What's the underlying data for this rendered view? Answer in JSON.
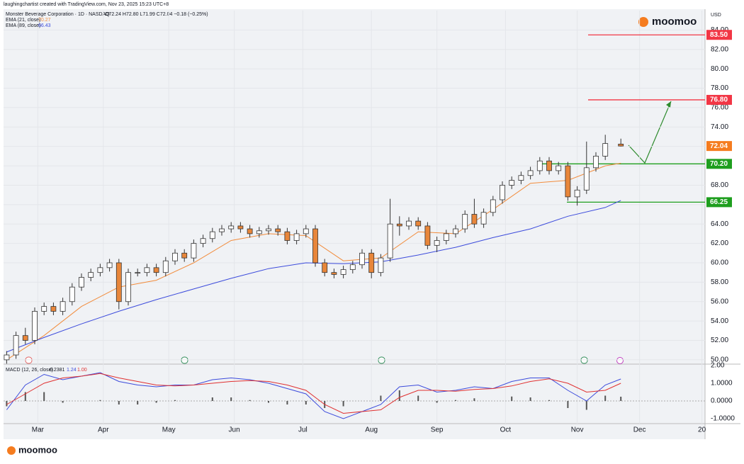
{
  "credit": "laughingchartist created with TradingView.com, Nov 23, 2025 15:23 UTC+8",
  "brand": "moomoo",
  "currency": "USD",
  "chart_data": [
    {
      "type": "candlestick",
      "title": "Monster Beverage Corporation · 1D · NASDAQ",
      "subtitle": "O72.24 H72.80 L71.99 C72.04 −0.18 (−0.25%)",
      "up_color": "#ffffff",
      "down_color": "#e8863a",
      "xlim": [
        -1,
        224
      ],
      "xticks": [
        {
          "value": 10,
          "label": "Mar"
        },
        {
          "value": 31,
          "label": "Apr"
        },
        {
          "value": 52,
          "label": "May"
        },
        {
          "value": 73,
          "label": "Jun"
        },
        {
          "value": 95,
          "label": "Jul"
        },
        {
          "value": 117,
          "label": "Aug"
        },
        {
          "value": 138,
          "label": "Sep"
        },
        {
          "value": 160,
          "label": "Oct"
        },
        {
          "value": 183,
          "label": "Nov"
        },
        {
          "value": 203,
          "label": "Dec"
        },
        {
          "value": 223,
          "label": "20"
        }
      ],
      "ylim": [
        49.7,
        86.0
      ],
      "yticks": [
        {
          "value": 50,
          "label": "50.00"
        },
        {
          "value": 52,
          "label": "52.00"
        },
        {
          "value": 54,
          "label": "54.00"
        },
        {
          "value": 56,
          "label": "56.00"
        },
        {
          "value": 58,
          "label": "58.00"
        },
        {
          "value": 60,
          "label": "60.00"
        },
        {
          "value": 62,
          "label": "62.00"
        },
        {
          "value": 64,
          "label": "64.00"
        },
        {
          "value": 66,
          "label": "66.00"
        },
        {
          "value": 68,
          "label": "68.00"
        },
        {
          "value": 70,
          "label": "70.00"
        },
        {
          "value": 72,
          "label": "72.00"
        },
        {
          "value": 74,
          "label": "74.00"
        },
        {
          "value": 76,
          "label": "76.00"
        },
        {
          "value": 78,
          "label": "78.00"
        },
        {
          "value": 80,
          "label": "80.00"
        },
        {
          "value": 82,
          "label": "82.00"
        },
        {
          "value": 84,
          "label": "84.00"
        }
      ],
      "x": [
        0,
        3,
        6,
        9,
        12,
        15,
        18,
        21,
        24,
        27,
        30,
        33,
        36,
        39,
        42,
        45,
        48,
        51,
        54,
        57,
        60,
        63,
        66,
        69,
        72,
        75,
        78,
        81,
        84,
        87,
        90,
        93,
        96,
        99,
        102,
        105,
        108,
        111,
        114,
        117,
        120,
        123,
        126,
        129,
        132,
        135,
        138,
        141,
        144,
        147,
        150,
        153,
        156,
        159,
        162,
        165,
        168,
        171,
        174,
        177,
        180,
        183,
        186,
        189,
        192,
        197
      ],
      "open": [
        50,
        50.5,
        52.5,
        52,
        55,
        55.5,
        55,
        56,
        57.5,
        58.5,
        59,
        59.5,
        60,
        56,
        59,
        59,
        59.5,
        59,
        60.2,
        61,
        60.5,
        62,
        62.5,
        63.2,
        63.5,
        63.8,
        63.5,
        63,
        63.3,
        63.5,
        63.2,
        62.3,
        63,
        63.5,
        60,
        59,
        58.8,
        59.3,
        59.8,
        61,
        59,
        60.5,
        64,
        63.8,
        64.3,
        63.8,
        61.8,
        62.3,
        63,
        63.5,
        65,
        64,
        65.2,
        66.5,
        68,
        68.5,
        69,
        69.5,
        70.5,
        69.5,
        70,
        66.8,
        67.5,
        69.8,
        71,
        72.24
      ],
      "high": [
        50.9,
        52.9,
        53.3,
        55.4,
        55.9,
        55.9,
        56.4,
        57.9,
        58.9,
        59.4,
        59.9,
        60.4,
        60.4,
        59.4,
        59.4,
        59.9,
        59.9,
        60.6,
        61.4,
        61.4,
        62.4,
        62.9,
        63.6,
        63.9,
        64.2,
        64.2,
        63.9,
        63.7,
        63.9,
        63.9,
        63.6,
        63.4,
        63.9,
        63.9,
        60.4,
        59.4,
        59.7,
        60.2,
        61.4,
        61.4,
        60.9,
        66.6,
        64.8,
        64.7,
        64.7,
        64.2,
        62.7,
        63.4,
        63.9,
        65.4,
        66.6,
        65.6,
        66.9,
        68.4,
        68.9,
        69.4,
        69.9,
        70.9,
        70.9,
        70.4,
        70.4,
        67.9,
        72.5,
        71.4,
        73.2,
        72.8
      ],
      "low": [
        49.6,
        50.1,
        51.6,
        51.6,
        54.6,
        54.6,
        54.6,
        55.6,
        57.1,
        58.1,
        58.6,
        59.1,
        55.2,
        55.6,
        58.6,
        58.6,
        58.6,
        58.6,
        59.8,
        60.1,
        60.1,
        61.6,
        62.1,
        62.8,
        63.1,
        63.1,
        62.6,
        62.6,
        62.9,
        62.8,
        61.9,
        61.9,
        62.6,
        59.6,
        58.6,
        58.4,
        58.4,
        58.9,
        59.4,
        58.4,
        58.6,
        60.1,
        62.8,
        63.4,
        63.4,
        61.4,
        61.1,
        61.9,
        62.6,
        63.1,
        63.6,
        63.6,
        64.8,
        66.1,
        67.6,
        68.1,
        68.6,
        69.1,
        69.1,
        69.1,
        66.4,
        65.9,
        67.1,
        69.4,
        70.6,
        71.99
      ],
      "close": [
        50.5,
        52.5,
        52,
        55,
        55.5,
        55,
        56,
        57.5,
        58.5,
        59,
        59.5,
        60,
        56,
        59,
        59,
        59.5,
        59,
        60.2,
        61,
        60.5,
        62,
        62.5,
        63.2,
        63.5,
        63.8,
        63.5,
        63,
        63.3,
        63.5,
        63.2,
        62.3,
        63,
        63.5,
        60,
        59,
        58.8,
        59.3,
        59.8,
        61,
        59,
        60.5,
        64,
        63.8,
        64.3,
        63.8,
        61.8,
        62.3,
        63,
        63.5,
        65,
        64,
        65.2,
        66.5,
        68,
        68.5,
        69,
        69.5,
        70.5,
        69.5,
        70,
        66.8,
        67.5,
        69.8,
        71,
        72.3,
        72.04
      ],
      "series": [
        {
          "name": "EMA (21, close)",
          "color": "#f28c3c",
          "last": 70.27,
          "x": [
            0,
            12,
            24,
            36,
            48,
            60,
            72,
            84,
            96,
            108,
            120,
            132,
            144,
            156,
            168,
            180,
            192,
            197
          ],
          "values": [
            50,
            52.5,
            55.5,
            57.5,
            58.2,
            60,
            62.3,
            63,
            62.8,
            60.2,
            60.5,
            63.2,
            63,
            65.5,
            68.2,
            68.5,
            70,
            70.27
          ]
        },
        {
          "name": "EMA (89, close)",
          "color": "#3c4bdc",
          "last": 66.43,
          "x": [
            0,
            12,
            24,
            36,
            48,
            60,
            72,
            84,
            96,
            108,
            120,
            132,
            144,
            156,
            168,
            180,
            192,
            197
          ],
          "values": [
            50.8,
            52.3,
            53.7,
            55,
            56.2,
            57.3,
            58.4,
            59.4,
            60,
            59.9,
            60.1,
            60.8,
            61.6,
            62.6,
            63.5,
            64.8,
            65.7,
            66.43
          ]
        }
      ],
      "levels": [
        {
          "value": 83.5,
          "label": "83.50",
          "color": "#f23645",
          "line": true
        },
        {
          "value": 76.8,
          "label": "76.80",
          "color": "#f23645",
          "line": true
        },
        {
          "value": 72.04,
          "label": "72.04",
          "color": "#f57c1f",
          "line": false
        },
        {
          "value": 70.2,
          "label": "70.20",
          "color": "#1e9e1e",
          "line": true
        },
        {
          "value": 66.25,
          "label": "66.25",
          "color": "#1e9e1e",
          "line": true
        }
      ]
    },
    {
      "type": "macd",
      "title": "MACD (12, 26, close)",
      "legend_values": [
        0.2381,
        1.24,
        1
      ],
      "legend_value_labels": [
        "0.2381",
        "1.24",
        "1.00"
      ],
      "legend_colors": [
        "#131722",
        "#3c4bdc",
        "#e03030"
      ],
      "ylim": [
        -1.28,
        2
      ],
      "yticks": [
        {
          "value": 2,
          "label": "2.00"
        },
        {
          "value": 1,
          "label": "1.0000"
        },
        {
          "value": 0,
          "label": "0.0000"
        },
        {
          "value": -1,
          "label": "-1.0000"
        }
      ],
      "x": [
        0,
        6,
        12,
        18,
        24,
        30,
        36,
        42,
        48,
        54,
        60,
        66,
        72,
        78,
        84,
        90,
        96,
        102,
        108,
        114,
        120,
        126,
        132,
        138,
        144,
        150,
        156,
        162,
        168,
        174,
        180,
        186,
        192,
        197
      ],
      "histogram": [
        -0.3,
        0.5,
        0.5,
        -0.1,
        0,
        0.05,
        -0.2,
        -0.2,
        -0.1,
        0.05,
        0,
        0.2,
        0.2,
        0.05,
        -0.1,
        -0.2,
        -0.2,
        -0.4,
        -0.3,
        0,
        0.3,
        0.6,
        0.3,
        -0.1,
        0.05,
        0.15,
        0,
        0.25,
        0.2,
        0.05,
        -0.4,
        -0.5,
        0.3,
        0.24
      ],
      "histogram_color": "#555",
      "series": [
        {
          "color": "#3c4bdc",
          "values": [
            -0.5,
            0.9,
            1.5,
            1.2,
            1.4,
            1.6,
            1.1,
            0.9,
            0.8,
            0.9,
            0.9,
            1.2,
            1.3,
            1.2,
            1,
            0.7,
            0.4,
            -0.6,
            -1,
            -0.6,
            -0.2,
            0.8,
            0.9,
            0.5,
            0.6,
            0.8,
            0.7,
            1.1,
            1.3,
            1.3,
            0.6,
            0,
            0.9,
            1.24
          ]
        },
        {
          "color": "#e03030",
          "values": [
            -0.2,
            0.4,
            1,
            1.3,
            1.4,
            1.55,
            1.3,
            1.1,
            0.9,
            0.85,
            0.9,
            1,
            1.1,
            1.15,
            1.1,
            0.9,
            0.6,
            -0.2,
            -0.7,
            -0.6,
            -0.5,
            0.2,
            0.6,
            0.6,
            0.55,
            0.65,
            0.7,
            0.85,
            1.1,
            1.25,
            1,
            0.5,
            0.6,
            1
          ]
        }
      ]
    }
  ]
}
